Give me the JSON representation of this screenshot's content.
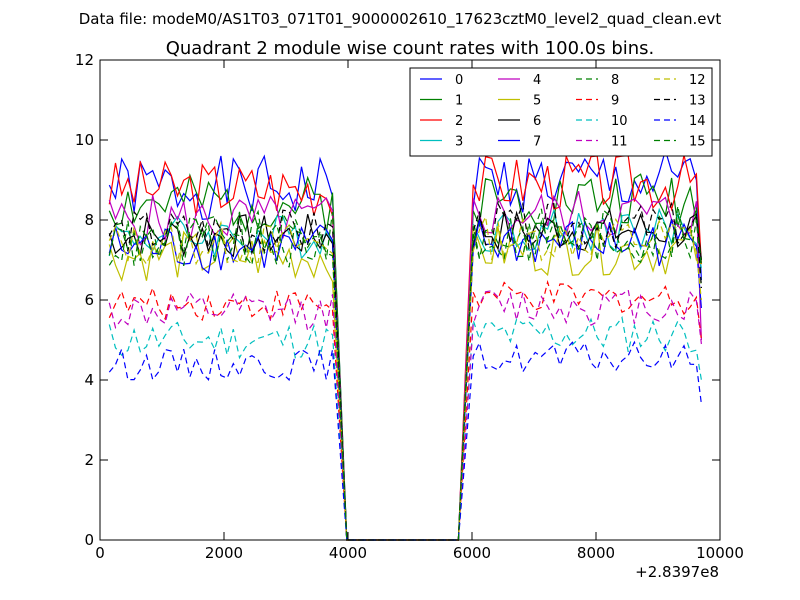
{
  "header": {
    "suptitle": "Data file: modeM0/AS1T03_071T01_9000002610_17623cztM0_level2_quad_clean.evt"
  },
  "chart_data": {
    "type": "line",
    "title": "Quadrant 2 module wise count rates with 100.0s bins.",
    "xlabel": "",
    "ylabel": "",
    "x_offset_label": "+2.8397e8",
    "xlim": [
      0,
      10000
    ],
    "ylim": [
      0,
      12
    ],
    "xticks": [
      0,
      2000,
      4000,
      6000,
      8000,
      10000
    ],
    "yticks": [
      0,
      2,
      4,
      6,
      8,
      10,
      12
    ],
    "grid": false,
    "legend_position": "top-right",
    "legend_columns": 4,
    "gap": {
      "data_end": 3820,
      "zero_start": 3980,
      "zero_end": 5870,
      "data_start": 6020,
      "last_x": 9700
    },
    "series": [
      {
        "name": "0",
        "color": "#0000ff",
        "dashed": false,
        "rate": 8.8,
        "amp": 0.5,
        "seed": 1,
        "end_value": 6.5
      },
      {
        "name": "1",
        "color": "#008000",
        "dashed": false,
        "rate": 8.4,
        "amp": 0.45,
        "seed": 2,
        "end_value": 7.0
      },
      {
        "name": "2",
        "color": "#ff0000",
        "dashed": false,
        "rate": 8.8,
        "amp": 0.45,
        "seed": 3,
        "end_value": 6.9
      },
      {
        "name": "3",
        "color": "#00bfbf",
        "dashed": false,
        "rate": 7.6,
        "amp": 0.35,
        "seed": 4,
        "end_value": 6.8
      },
      {
        "name": "4",
        "color": "#bf00bf",
        "dashed": false,
        "rate": 8.0,
        "amp": 0.4,
        "seed": 5,
        "end_value": 5.0
      },
      {
        "name": "5",
        "color": "#bfbf00",
        "dashed": false,
        "rate": 7.1,
        "amp": 0.4,
        "seed": 6,
        "end_value": 6.9
      },
      {
        "name": "6",
        "color": "#000000",
        "dashed": false,
        "rate": 7.6,
        "amp": 0.35,
        "seed": 7,
        "end_value": 7.0
      },
      {
        "name": "7",
        "color": "#0000ff",
        "dashed": false,
        "rate": 7.3,
        "amp": 0.4,
        "seed": 8,
        "end_value": 5.8
      },
      {
        "name": "8",
        "color": "#008000",
        "dashed": true,
        "rate": 7.5,
        "amp": 0.45,
        "seed": 9,
        "end_value": 6.3
      },
      {
        "name": "9",
        "color": "#ff0000",
        "dashed": true,
        "rate": 5.9,
        "amp": 0.25,
        "seed": 10,
        "end_value": 5.0
      },
      {
        "name": "10",
        "color": "#00bfbf",
        "dashed": true,
        "rate": 5.0,
        "amp": 0.3,
        "seed": 11,
        "end_value": 4.0
      },
      {
        "name": "11",
        "color": "#bf00bf",
        "dashed": true,
        "rate": 5.7,
        "amp": 0.3,
        "seed": 12,
        "end_value": 4.9
      },
      {
        "name": "12",
        "color": "#bfbf00",
        "dashed": true,
        "rate": 7.4,
        "amp": 0.35,
        "seed": 13,
        "end_value": 6.0
      },
      {
        "name": "13",
        "color": "#000000",
        "dashed": true,
        "rate": 7.7,
        "amp": 0.35,
        "seed": 14,
        "end_value": 6.3
      },
      {
        "name": "14",
        "color": "#0000ff",
        "dashed": true,
        "rate": 4.4,
        "amp": 0.25,
        "seed": 15,
        "end_value": 3.4
      },
      {
        "name": "15",
        "color": "#008000",
        "dashed": true,
        "rate": 7.4,
        "amp": 0.4,
        "seed": 16,
        "end_value": 6.9
      }
    ]
  }
}
